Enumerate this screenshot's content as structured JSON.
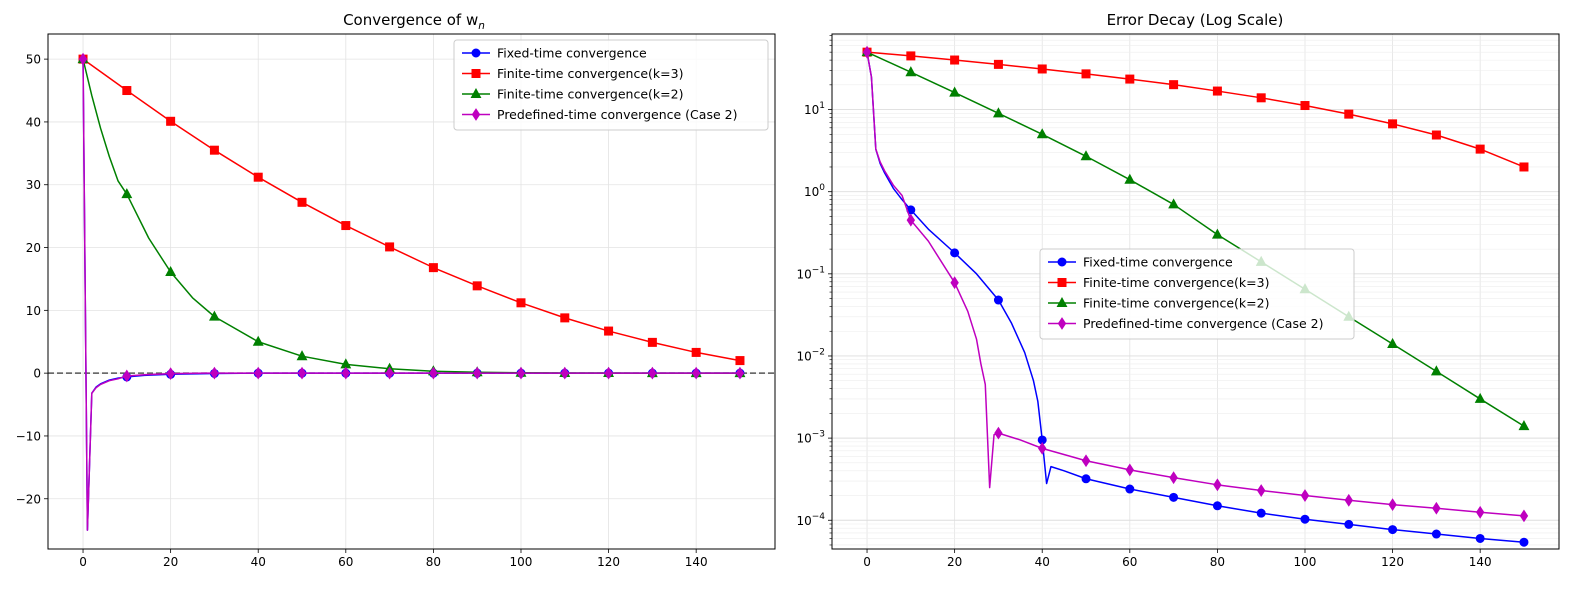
{
  "chart_data": [
    {
      "type": "line",
      "title": "Convergence of w",
      "title_sub": "n",
      "xlim": [
        -8,
        158
      ],
      "ylim": [
        -28,
        54
      ],
      "xticks": [
        0,
        20,
        40,
        60,
        80,
        100,
        120,
        140
      ],
      "yticks": [
        -20,
        -10,
        0,
        10,
        20,
        30,
        40,
        50
      ],
      "ytick_labels": [
        "−20",
        "−10",
        "0",
        "10",
        "20",
        "30",
        "40",
        "50"
      ],
      "grid": true,
      "legend_position": "upper right",
      "reference_line": {
        "y": 0,
        "style": "dashed",
        "color": "#555555"
      },
      "series": [
        {
          "name": "Fixed-time convergence",
          "color": "#0000ff",
          "marker": "circle",
          "line_x": [
            0,
            1,
            2,
            3,
            4,
            6,
            8,
            10,
            14,
            20,
            30,
            40,
            41,
            42,
            50,
            60,
            70,
            80,
            90,
            100,
            110,
            120,
            130,
            140,
            150
          ],
          "line_y": [
            50,
            -25,
            -3.2,
            -2.2,
            -1.7,
            -1.1,
            -0.8,
            -0.6,
            -0.35,
            -0.18,
            -0.05,
            -0.001,
            0,
            0,
            0,
            0,
            0,
            0,
            0,
            0,
            0,
            0,
            0,
            0,
            0
          ],
          "marker_x": [
            0,
            10,
            20,
            30,
            40,
            50,
            60,
            70,
            80,
            90,
            100,
            110,
            120,
            130,
            140,
            150
          ],
          "marker_y": [
            50,
            -0.6,
            -0.18,
            -0.05,
            -0.001,
            0,
            0,
            0,
            0,
            0,
            0,
            0,
            0,
            0,
            0,
            0
          ]
        },
        {
          "name": "Finite-time convergence(k=3)",
          "color": "#ff0000",
          "marker": "square",
          "line_x": [
            0,
            10,
            20,
            30,
            40,
            50,
            60,
            70,
            80,
            90,
            100,
            110,
            120,
            130,
            140,
            150
          ],
          "line_y": [
            50,
            45,
            40.1,
            35.5,
            31.2,
            27.2,
            23.5,
            20.1,
            16.8,
            13.9,
            11.2,
            8.8,
            6.7,
            4.9,
            3.3,
            2.0
          ],
          "marker_x": [
            0,
            10,
            20,
            30,
            40,
            50,
            60,
            70,
            80,
            90,
            100,
            110,
            120,
            130,
            140,
            150
          ],
          "marker_y": [
            50,
            45,
            40.1,
            35.5,
            31.2,
            27.2,
            23.5,
            20.1,
            16.8,
            13.9,
            11.2,
            8.8,
            6.7,
            4.9,
            3.3,
            2.0
          ]
        },
        {
          "name": "Finite-time convergence(k=2)",
          "color": "#008000",
          "marker": "triangle",
          "line_x": [
            0,
            2,
            4,
            6,
            8,
            10,
            15,
            20,
            25,
            30,
            40,
            50,
            60,
            70,
            80,
            90,
            100,
            110,
            120,
            130,
            140,
            150
          ],
          "line_y": [
            50,
            44.2,
            39.0,
            34.5,
            30.6,
            28.5,
            21.5,
            16.1,
            12.0,
            9.0,
            5.0,
            2.7,
            1.4,
            0.7,
            0.3,
            0.14,
            0.06,
            0.03,
            0.014,
            0.0065,
            0.003,
            0.0014
          ],
          "marker_x": [
            0,
            10,
            20,
            30,
            40,
            50,
            60,
            70,
            80,
            90,
            100,
            110,
            120,
            130,
            140,
            150
          ],
          "marker_y": [
            50,
            28.5,
            16.1,
            9.0,
            5.0,
            2.7,
            1.4,
            0.7,
            0.3,
            0.14,
            0.06,
            0.03,
            0.014,
            0.0065,
            0.003,
            0.0014
          ]
        },
        {
          "name": "Predefined-time convergence (Case 2)",
          "color": "#bf00bf",
          "marker": "diamond",
          "line_x": [
            0,
            1,
            2,
            3,
            4,
            6,
            8,
            10,
            14,
            20,
            28,
            30,
            40,
            50,
            60,
            70,
            80,
            90,
            100,
            110,
            120,
            130,
            140,
            150
          ],
          "line_y": [
            50,
            -25,
            -3.2,
            -2.3,
            -1.8,
            -1.2,
            -0.9,
            -0.45,
            -0.25,
            -0.08,
            0,
            0,
            0,
            0,
            0,
            0,
            0,
            0,
            0,
            0,
            0,
            0,
            0,
            0
          ],
          "marker_x": [
            0,
            10,
            20,
            30,
            40,
            50,
            60,
            70,
            80,
            90,
            100,
            110,
            120,
            130,
            140,
            150
          ],
          "marker_y": [
            50,
            -0.45,
            -0.08,
            0,
            0,
            0,
            0,
            0,
            0,
            0,
            0,
            0,
            0,
            0,
            0,
            0
          ]
        }
      ]
    },
    {
      "type": "line",
      "title": "Error Decay (Log Scale)",
      "yscale": "log",
      "xlim": [
        -8,
        158
      ],
      "ylim_log10": [
        -4.35,
        1.92
      ],
      "xticks": [
        0,
        20,
        40,
        60,
        80,
        100,
        120,
        140
      ],
      "yticks_exp": [
        -4,
        -3,
        -2,
        -1,
        0,
        1
      ],
      "ytick_base": "10",
      "grid": true,
      "legend_position": "center",
      "series": [
        {
          "name": "Fixed-time convergence",
          "color": "#0000ff",
          "marker": "circle",
          "line_x": [
            0,
            1,
            2,
            3,
            4,
            6,
            8,
            10,
            14,
            20,
            25,
            30,
            33,
            36,
            38,
            39,
            40,
            41,
            42,
            45,
            50,
            60,
            70,
            80,
            90,
            100,
            110,
            120,
            130,
            140,
            150
          ],
          "line_y": [
            50,
            25,
            3.3,
            2.2,
            1.7,
            1.1,
            0.8,
            0.6,
            0.35,
            0.18,
            0.1,
            0.048,
            0.025,
            0.011,
            0.005,
            0.0028,
            0.00095,
            0.00028,
            0.00045,
            0.0004,
            0.00032,
            0.00024,
            0.00019,
            0.00015,
            0.000122,
            0.000103,
            8.9e-05,
            7.7e-05,
            6.8e-05,
            6e-05,
            5.4e-05
          ],
          "marker_x": [
            0,
            10,
            20,
            30,
            40,
            50,
            60,
            70,
            80,
            90,
            100,
            110,
            120,
            130,
            140,
            150
          ],
          "marker_y": [
            50,
            0.6,
            0.18,
            0.048,
            0.00095,
            0.00032,
            0.00024,
            0.00019,
            0.00015,
            0.000122,
            0.000103,
            8.9e-05,
            7.7e-05,
            6.8e-05,
            6e-05,
            5.4e-05
          ]
        },
        {
          "name": "Finite-time convergence(k=3)",
          "color": "#ff0000",
          "marker": "square",
          "line_x": [
            0,
            10,
            20,
            30,
            40,
            50,
            60,
            70,
            80,
            90,
            100,
            110,
            120,
            130,
            140,
            150
          ],
          "line_y": [
            50,
            45,
            40.1,
            35.5,
            31.2,
            27.2,
            23.5,
            20.1,
            16.8,
            13.9,
            11.2,
            8.8,
            6.7,
            4.9,
            3.3,
            2.0
          ],
          "marker_x": [
            0,
            10,
            20,
            30,
            40,
            50,
            60,
            70,
            80,
            90,
            100,
            110,
            120,
            130,
            140,
            150
          ],
          "marker_y": [
            50,
            45,
            40.1,
            35.5,
            31.2,
            27.2,
            23.5,
            20.1,
            16.8,
            13.9,
            11.2,
            8.8,
            6.7,
            4.9,
            3.3,
            2.0
          ]
        },
        {
          "name": "Finite-time convergence(k=2)",
          "color": "#008000",
          "marker": "triangle",
          "line_x": [
            0,
            10,
            20,
            30,
            40,
            50,
            60,
            70,
            80,
            90,
            100,
            110,
            120,
            130,
            140,
            150
          ],
          "line_y": [
            50,
            28.5,
            16.1,
            9.0,
            5.0,
            2.7,
            1.4,
            0.7,
            0.3,
            0.14,
            0.065,
            0.03,
            0.014,
            0.0065,
            0.003,
            0.0014
          ],
          "marker_x": [
            0,
            10,
            20,
            30,
            40,
            50,
            60,
            70,
            80,
            90,
            100,
            110,
            120,
            130,
            140,
            150
          ],
          "marker_y": [
            50,
            28.5,
            16.1,
            9.0,
            5.0,
            2.7,
            1.4,
            0.7,
            0.3,
            0.14,
            0.065,
            0.03,
            0.014,
            0.0065,
            0.003,
            0.0014
          ]
        },
        {
          "name": "Predefined-time convergence (Case 2)",
          "color": "#bf00bf",
          "marker": "diamond",
          "line_x": [
            0,
            1,
            2,
            3,
            4,
            6,
            8,
            10,
            14,
            20,
            23,
            25,
            26,
            27,
            28,
            29,
            30,
            35,
            40,
            50,
            60,
            70,
            80,
            90,
            100,
            110,
            120,
            130,
            140,
            150
          ],
          "line_y": [
            50,
            25,
            3.3,
            2.3,
            1.8,
            1.2,
            0.9,
            0.45,
            0.25,
            0.078,
            0.035,
            0.016,
            0.008,
            0.0045,
            0.00025,
            0.0011,
            0.00115,
            0.00095,
            0.00075,
            0.00053,
            0.00041,
            0.00033,
            0.00027,
            0.00023,
            0.0002,
            0.000175,
            0.000155,
            0.00014,
            0.000125,
            0.000113
          ],
          "marker_x": [
            0,
            10,
            20,
            30,
            40,
            50,
            60,
            70,
            80,
            90,
            100,
            110,
            120,
            130,
            140,
            150
          ],
          "marker_y": [
            50,
            0.45,
            0.078,
            0.00115,
            0.00075,
            0.00053,
            0.00041,
            0.00033,
            0.00027,
            0.00023,
            0.0002,
            0.000175,
            0.000155,
            0.00014,
            0.000125,
            0.000113
          ]
        }
      ]
    }
  ]
}
